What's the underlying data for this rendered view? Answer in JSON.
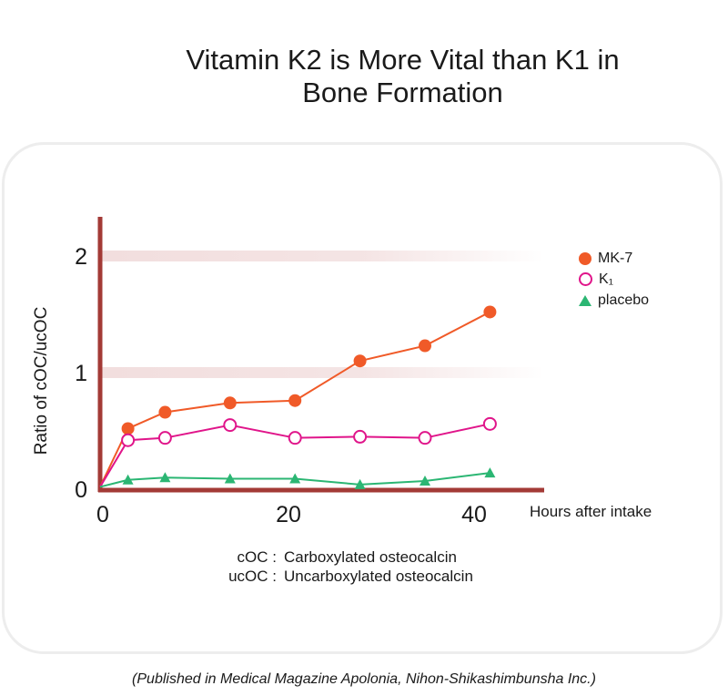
{
  "title_line1": "Vitamin K2 is More Vital than K1 in",
  "title_line2": "Bone Formation",
  "source": "(Published in Medical Magazine Apolonia, Nihon-Shikashimbunsha Inc.)",
  "definitions": [
    {
      "abbr": "cOC :",
      "text": "Carboxylated osteocalcin"
    },
    {
      "abbr": "ucOC :",
      "text": "Uncarboxylated osteocalcin"
    }
  ],
  "colors": {
    "axis": "#a33a36",
    "mk7": "#f05a28",
    "k1": "#e0158a",
    "placebo": "#2bb673",
    "band": "#f2dede"
  },
  "chart_data": {
    "type": "line",
    "xlabel": "Hours after intake",
    "ylabel": "Ratio of cOC/ucOC",
    "xlim": [
      0,
      46
    ],
    "ylim": [
      0,
      2.4
    ],
    "xticks": [
      0,
      20,
      40
    ],
    "yticks": [
      0,
      1,
      2
    ],
    "series": [
      {
        "name": "MK-7",
        "marker": "filled-circle",
        "x": [
          0,
          3,
          7,
          14,
          21,
          28,
          35,
          42
        ],
        "y": [
          0.02,
          0.52,
          0.66,
          0.74,
          0.76,
          1.1,
          1.23,
          1.52
        ]
      },
      {
        "name": "K₁",
        "marker": "open-circle",
        "x": [
          0,
          3,
          7,
          14,
          21,
          28,
          35,
          42
        ],
        "y": [
          0.02,
          0.42,
          0.44,
          0.55,
          0.44,
          0.45,
          0.44,
          0.56
        ]
      },
      {
        "name": "placebo",
        "marker": "triangle",
        "x": [
          0,
          3,
          7,
          14,
          21,
          28,
          35,
          42
        ],
        "y": [
          0.02,
          0.08,
          0.1,
          0.09,
          0.09,
          0.04,
          0.07,
          0.14
        ]
      }
    ]
  }
}
